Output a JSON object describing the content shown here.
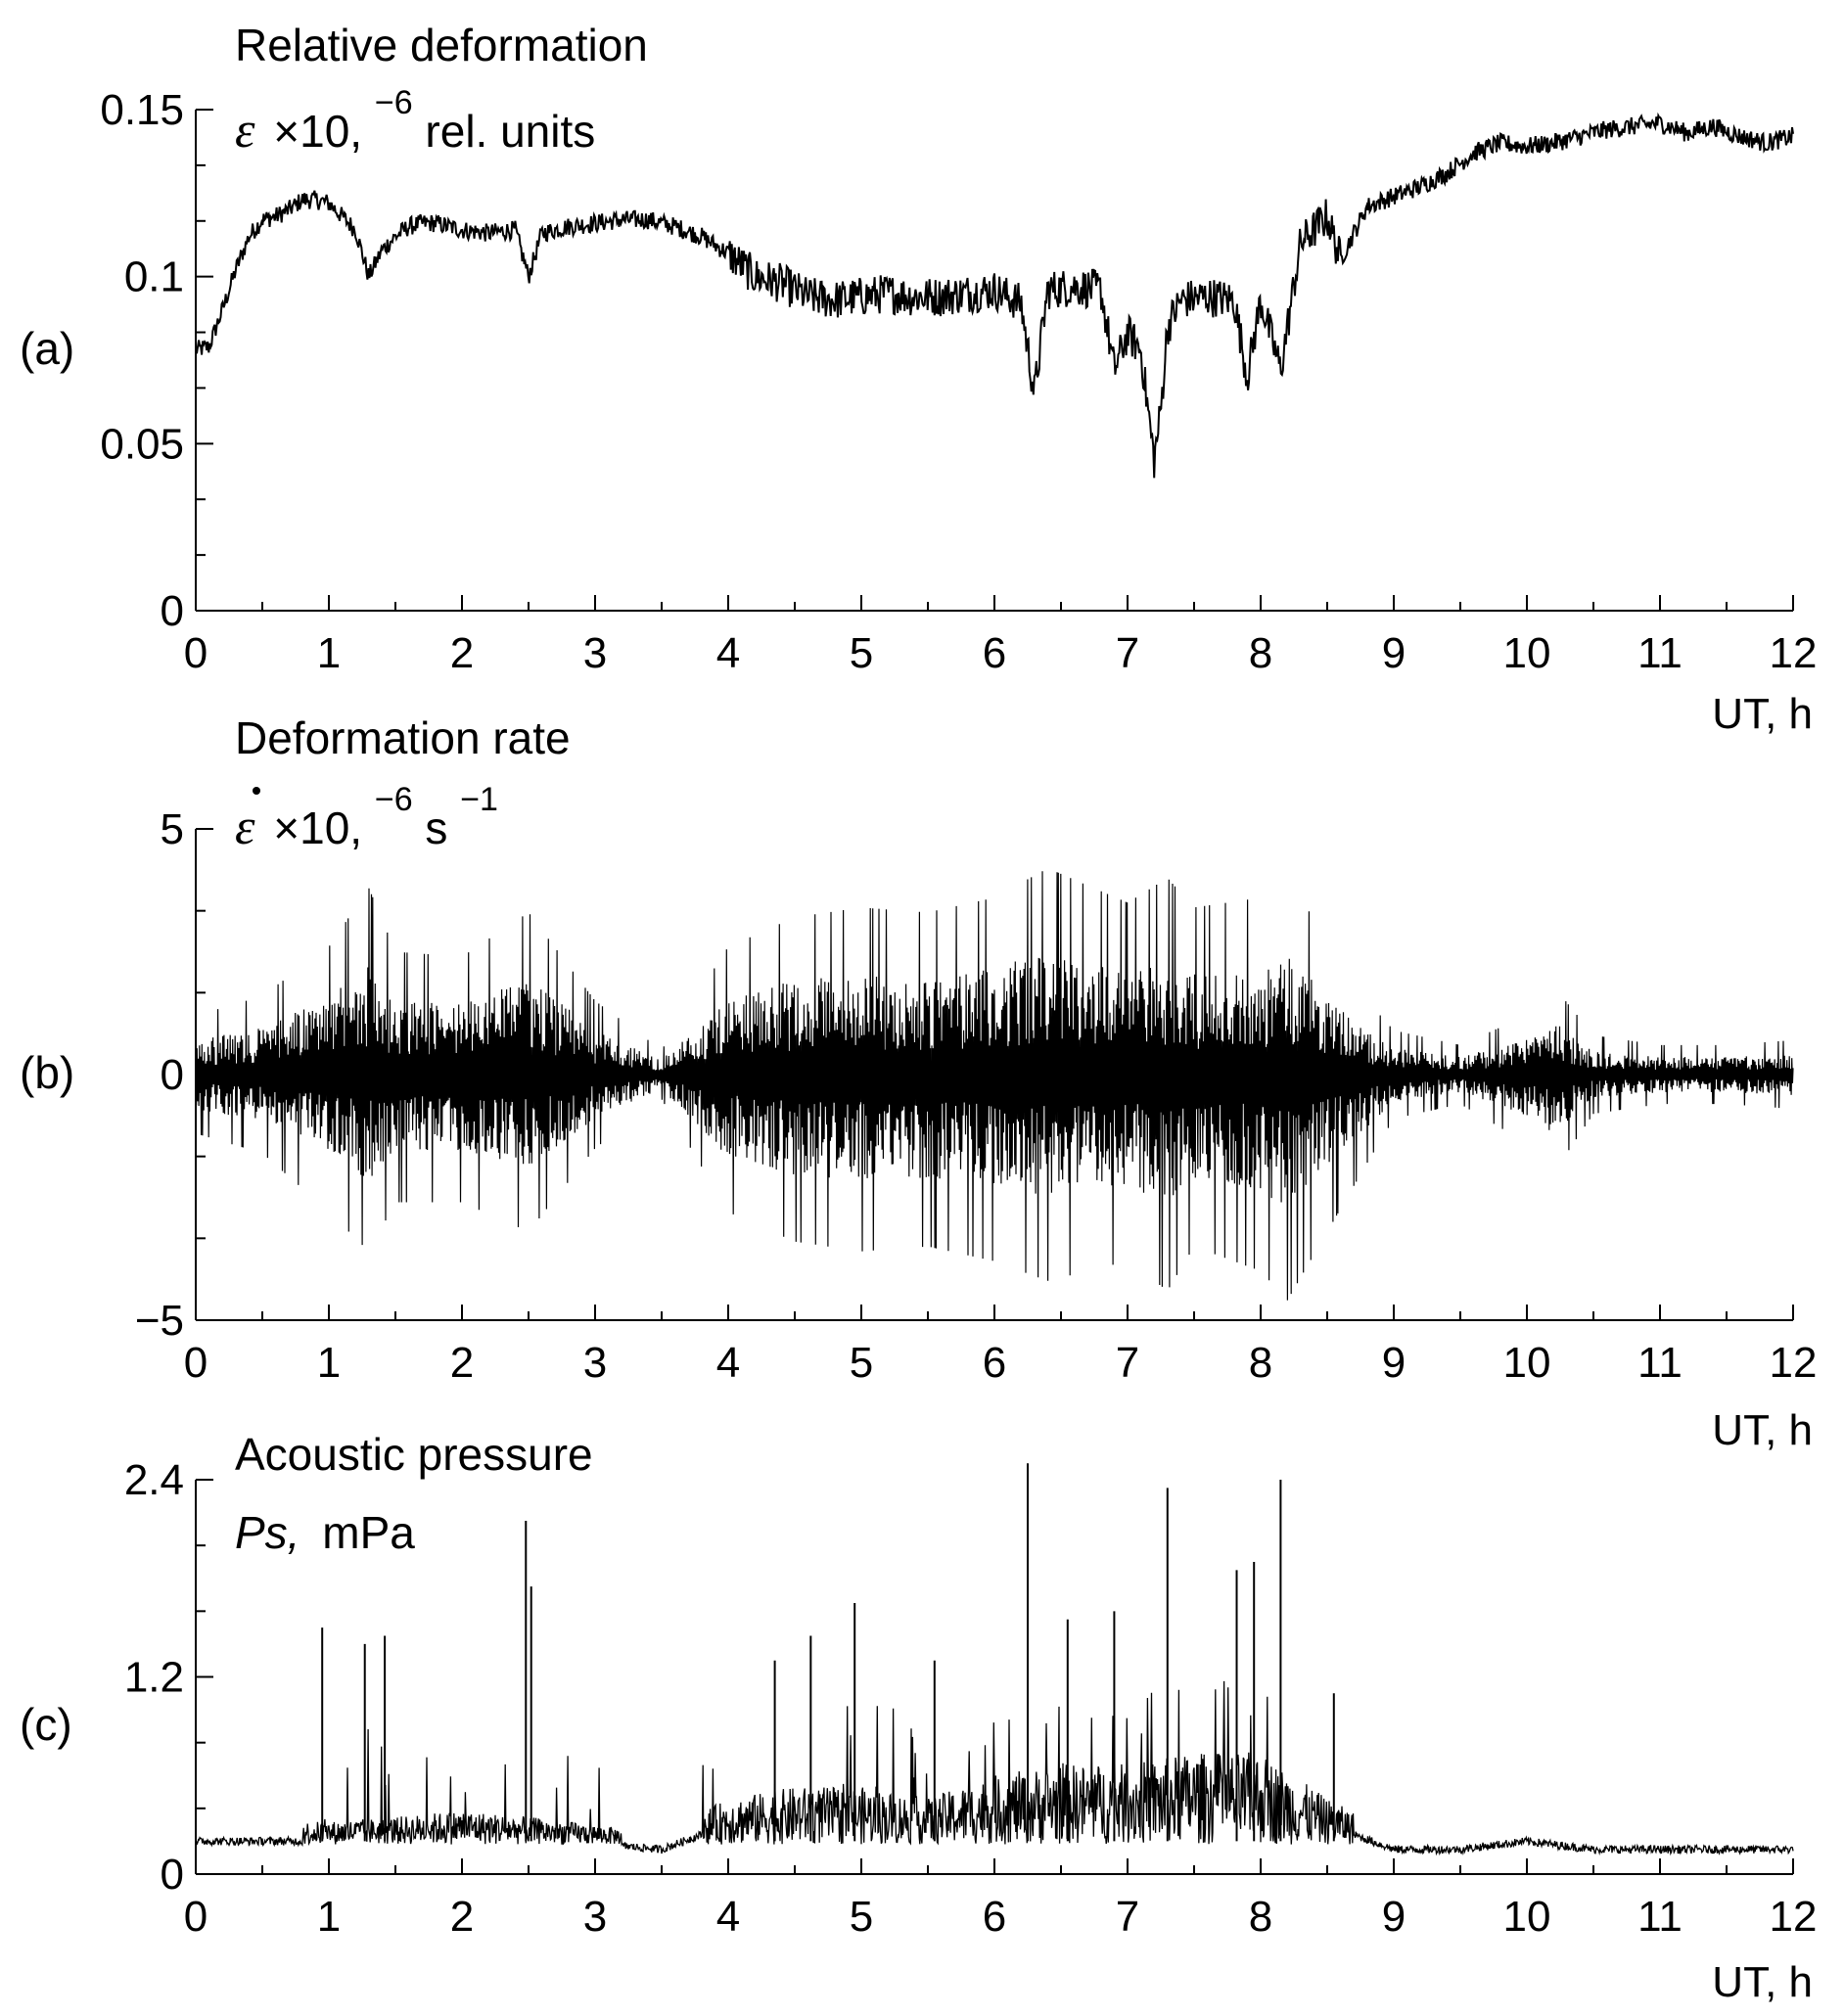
{
  "figure": {
    "panels": [
      {
        "id": "a",
        "label": "(a)",
        "title": "Relative deformation",
        "unit_parts": [
          "ε",
          "×10,",
          "−6",
          "rel. units"
        ],
        "xlabel": "UT, h"
      },
      {
        "id": "b",
        "label": "(b)",
        "title": "Deformation rate",
        "unit_parts": [
          "ε",
          "×10,",
          "−6",
          "s",
          "−1"
        ],
        "xlabel": "UT, h"
      },
      {
        "id": "c",
        "label": "(c)",
        "title": "Acoustic pressure",
        "unit_parts": [
          "Ps,",
          "mPa"
        ],
        "xlabel": "UT, h"
      }
    ]
  },
  "chart_data": [
    {
      "type": "line",
      "title": "Relative deformation",
      "ylabel": "ε ×10, −6 rel. units",
      "xlabel": "UT, h",
      "xlim": [
        0,
        12
      ],
      "ylim": [
        0,
        0.15
      ],
      "x_ticks": [
        0,
        1,
        2,
        3,
        4,
        5,
        6,
        7,
        8,
        9,
        10,
        11,
        12
      ],
      "y_ticks": [
        0,
        0.05,
        0.1,
        0.15
      ],
      "y_tick_labels": [
        "0",
        "0.05",
        "0.1",
        "0.15"
      ],
      "x": [
        0,
        0.1,
        0.2,
        0.3,
        0.4,
        0.5,
        0.6,
        0.7,
        0.8,
        0.9,
        1.0,
        1.1,
        1.2,
        1.3,
        1.4,
        1.5,
        1.6,
        1.7,
        1.8,
        1.9,
        2.0,
        2.2,
        2.4,
        2.5,
        2.6,
        2.8,
        3.0,
        3.2,
        3.4,
        3.6,
        3.8,
        4.0,
        4.2,
        4.4,
        4.6,
        4.8,
        5.0,
        5.2,
        5.4,
        5.6,
        5.8,
        6.0,
        6.2,
        6.3,
        6.4,
        6.6,
        6.8,
        6.9,
        7.0,
        7.1,
        7.2,
        7.25,
        7.3,
        7.4,
        7.6,
        7.8,
        7.9,
        8.0,
        8.15,
        8.3,
        8.5,
        8.6,
        8.8,
        9.0,
        9.2,
        9.4,
        9.6,
        9.8,
        10.0,
        10.2,
        10.4,
        10.6,
        10.8,
        11.0,
        11.2,
        11.4,
        11.6,
        11.8,
        12.0
      ],
      "values": [
        0.078,
        0.079,
        0.09,
        0.102,
        0.112,
        0.117,
        0.118,
        0.12,
        0.123,
        0.123,
        0.122,
        0.118,
        0.114,
        0.1,
        0.108,
        0.112,
        0.115,
        0.116,
        0.116,
        0.115,
        0.114,
        0.113,
        0.114,
        0.1,
        0.113,
        0.115,
        0.116,
        0.117,
        0.117,
        0.115,
        0.112,
        0.107,
        0.1,
        0.098,
        0.094,
        0.093,
        0.094,
        0.095,
        0.094,
        0.094,
        0.095,
        0.096,
        0.092,
        0.065,
        0.096,
        0.097,
        0.096,
        0.072,
        0.083,
        0.078,
        0.045,
        0.06,
        0.085,
        0.093,
        0.094,
        0.093,
        0.07,
        0.093,
        0.072,
        0.11,
        0.118,
        0.105,
        0.121,
        0.124,
        0.127,
        0.131,
        0.137,
        0.14,
        0.139,
        0.14,
        0.142,
        0.144,
        0.145,
        0.146,
        0.143,
        0.145,
        0.142,
        0.14,
        0.142
      ]
    },
    {
      "type": "line",
      "title": "Deformation rate",
      "ylabel": "ε ×10, −6 s −1",
      "xlabel": "UT, h",
      "xlim": [
        0,
        12
      ],
      "ylim": [
        -5,
        5
      ],
      "x_ticks": [
        0,
        1,
        2,
        3,
        4,
        5,
        6,
        7,
        8,
        9,
        10,
        11,
        12
      ],
      "y_ticks": [
        -5,
        0,
        5
      ],
      "y_tick_labels": [
        "−5",
        "0",
        "5"
      ],
      "x": [
        0,
        0.5,
        1.0,
        1.3,
        1.5,
        2.0,
        2.5,
        3.0,
        3.5,
        4.0,
        4.5,
        5.0,
        5.5,
        6.0,
        6.4,
        7.0,
        7.3,
        7.5,
        8.0,
        8.2,
        8.8,
        9.0,
        9.5,
        10.0,
        10.2,
        10.5,
        11.0,
        11.5,
        12.0
      ],
      "envelope_max": [
        1.2,
        1.6,
        2.6,
        3.8,
        2.5,
        2.4,
        3.3,
        1.5,
        0.5,
        2.6,
        3.2,
        3.4,
        3.3,
        3.6,
        4.2,
        3.5,
        4.0,
        3.4,
        3.6,
        4.0,
        1.5,
        0.9,
        0.6,
        1.2,
        1.8,
        0.8,
        0.6,
        0.6,
        0.7
      ],
      "envelope_min": [
        -1.2,
        -1.6,
        -2.8,
        -3.6,
        -2.6,
        -2.6,
        -3.2,
        -1.5,
        -0.5,
        -2.8,
        -3.4,
        -3.6,
        -3.5,
        -3.8,
        -4.2,
        -3.8,
        -4.4,
        -3.5,
        -4.0,
        -4.6,
        -1.8,
        -0.9,
        -0.6,
        -1.4,
        -2.0,
        -0.8,
        -0.6,
        -0.6,
        -0.7
      ]
    },
    {
      "type": "line",
      "title": "Acoustic pressure",
      "ylabel": "Ps, mPa",
      "xlabel": "UT, h",
      "xlim": [
        0,
        12
      ],
      "ylim": [
        0,
        2.4
      ],
      "x_ticks": [
        0,
        1,
        2,
        3,
        4,
        5,
        6,
        7,
        8,
        9,
        10,
        11,
        12
      ],
      "y_ticks": [
        0,
        1.2,
        2.4
      ],
      "y_tick_labels": [
        "0",
        "1.2",
        "2.4"
      ],
      "baseline": [
        0.2,
        0.2,
        0.2,
        0.22,
        0.25,
        0.22,
        0.15,
        0.3,
        0.35,
        0.35,
        0.3,
        0.4,
        0.45,
        0.45,
        0.5,
        0.5,
        0.3,
        0.15,
        0.15,
        0.2,
        0.15,
        0.15,
        0.15
      ],
      "baseline_x": [
        0,
        0.5,
        1.0,
        1.5,
        2.0,
        2.5,
        3.5,
        4.0,
        4.5,
        5.0,
        5.5,
        6.0,
        6.5,
        7.0,
        7.5,
        8.0,
        8.5,
        9.0,
        9.5,
        10.0,
        10.5,
        11.0,
        12.0
      ],
      "peaks_x": [
        0.95,
        1.27,
        1.42,
        2.48,
        2.52,
        4.35,
        4.62,
        4.95,
        5.55,
        6.25,
        6.55,
        6.9,
        7.3,
        7.82,
        7.95,
        8.15,
        8.55
      ],
      "peaks_y": [
        1.5,
        1.4,
        1.45,
        2.15,
        1.75,
        1.3,
        1.45,
        1.65,
        1.3,
        2.5,
        1.55,
        1.6,
        2.35,
        1.85,
        1.9,
        2.4,
        1.1
      ]
    }
  ]
}
